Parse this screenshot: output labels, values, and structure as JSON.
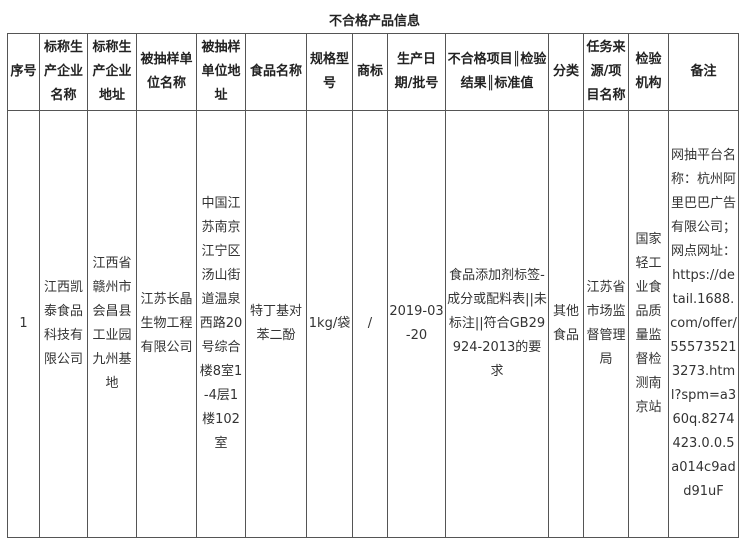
{
  "title": "不合格产品信息",
  "headers": [
    "序号",
    "标称生产企业名称",
    "标称生产企业地址",
    "被抽样单位名称",
    "被抽样单位地址",
    "食品名称",
    "规格型号",
    "商标",
    "生产日期/批号",
    "不合格项目║检验结果║标准值",
    "分类",
    "任务来源/项目名称",
    "检验机构",
    "备注"
  ],
  "rows": [
    [
      "1",
      "江西凯泰食品科技有限公司",
      "江西省赣州市会昌县工业园九州基地",
      "江苏长晶生物工程有限公司",
      "中国江苏南京江宁区汤山街道温泉西路20号综合楼8室1-4层1楼102室",
      "特丁基对苯二酚",
      "1kg/袋",
      "/",
      "2019-03-20",
      "食品添加剂标签-成分或配料表||未标注||符合GB29924-2013的要求",
      "其他食品",
      "江苏省市场监督管理局",
      "国家轻工业食品质量监督检测南京站",
      "网抽平台名称：杭州阿里巴巴广告有限公司；网点网址：https://detail.1688.com/offer/555735213273.html?spm=a360q.8274423.0.0.5a014c9add91uF"
    ]
  ]
}
